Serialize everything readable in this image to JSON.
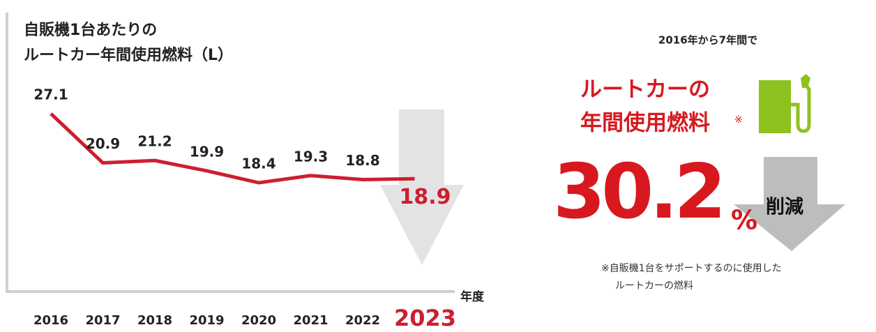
{
  "chart_data": {
    "type": "line",
    "title": [
      "自販機1台あたりの",
      "ルートカー年間使用燃料（L）"
    ],
    "x_label": "年度",
    "categories": [
      "2016",
      "2017",
      "2018",
      "2019",
      "2020",
      "2021",
      "2022",
      "2023"
    ],
    "values": [
      27.1,
      20.9,
      21.2,
      19.9,
      18.4,
      19.3,
      18.8,
      18.9
    ],
    "color": "#cc1f2f",
    "grid": false
  },
  "panel": {
    "lead": "2016年から7年間で",
    "heading": [
      "ルートカーの",
      "年間使用燃料"
    ],
    "mark": "※",
    "reduction": 30.2,
    "unit": "%",
    "word": "削減",
    "note": [
      "※自販機1台をサポートするのに使用した",
      "ルートカーの燃料"
    ]
  }
}
